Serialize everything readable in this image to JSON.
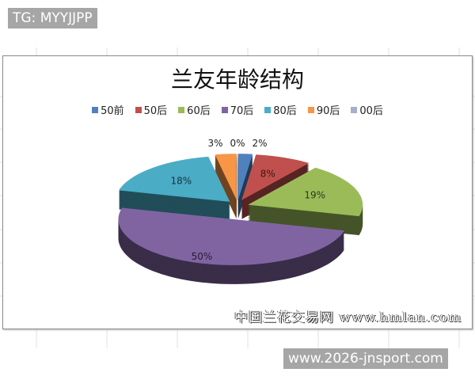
{
  "watermark_top": "TG: MYYJJPP",
  "watermark_bottom": "www.2026-jnsport.com",
  "site_watermark": "中国兰花交易网 www.hmlan.com",
  "chart_data": {
    "type": "pie",
    "style": "3d-exploded",
    "title": "兰友年龄结构",
    "legend_position": "top",
    "categories": [
      "50前",
      "50后",
      "60后",
      "70后",
      "80后",
      "90后",
      "00后"
    ],
    "values": [
      2,
      8,
      19,
      50,
      18,
      3,
      0
    ],
    "labels": [
      "2%",
      "8%",
      "19%",
      "50%",
      "18%",
      "3%",
      "0%"
    ],
    "colors": [
      "#4f81bd",
      "#c0504d",
      "#9bbb59",
      "#8064a2",
      "#4bacc6",
      "#f79646",
      "#a5b0cc"
    ]
  }
}
